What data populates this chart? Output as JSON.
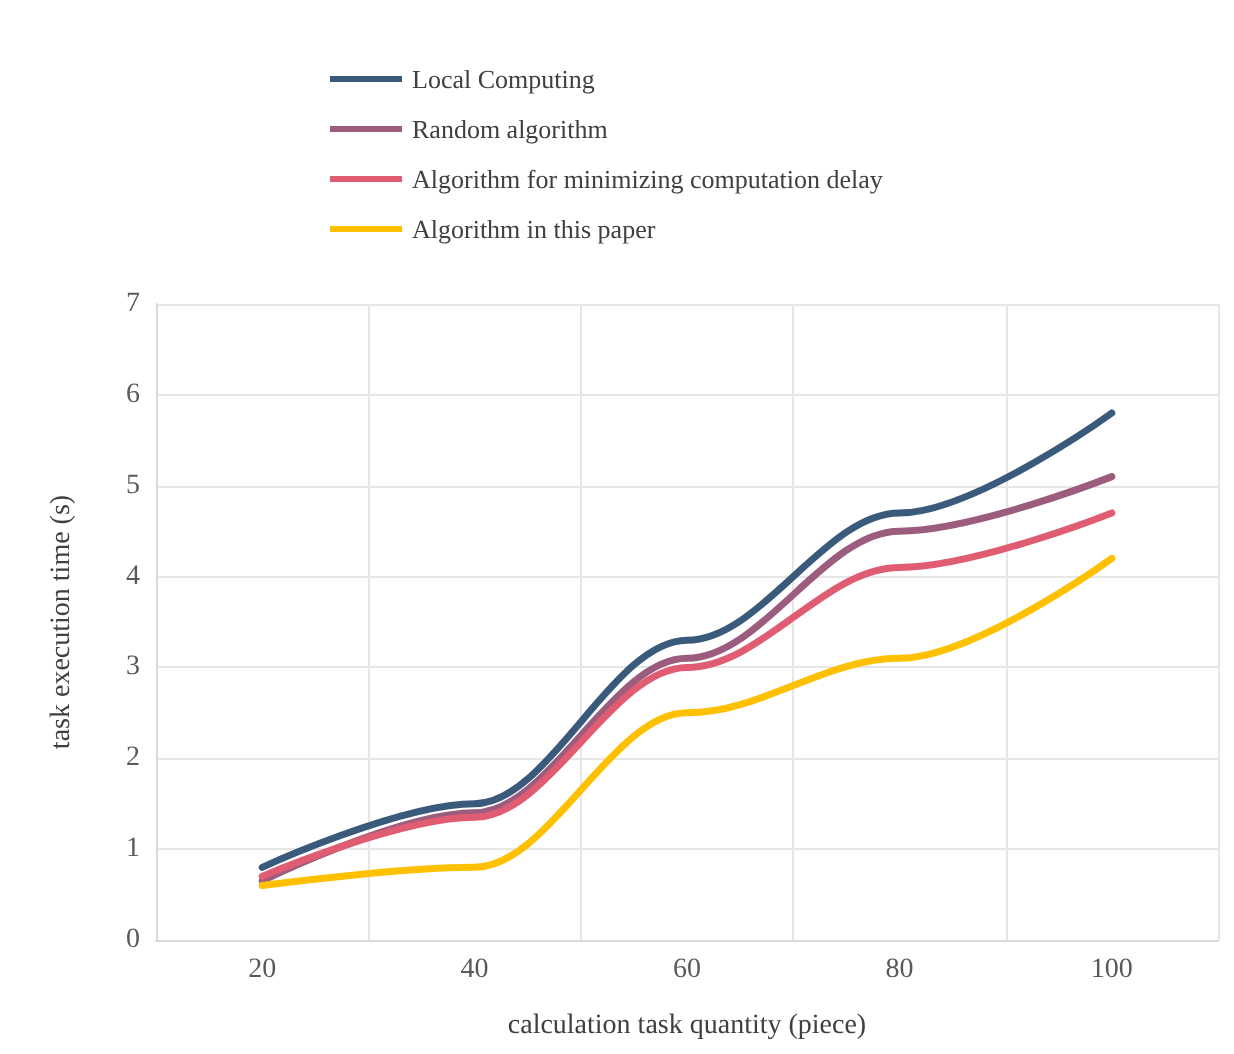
{
  "chart_data": {
    "type": "line",
    "xlabel": "calculation task quantity (piece)",
    "ylabel": "task execution time (s)",
    "categories": [
      "20",
      "40",
      "60",
      "80",
      "100"
    ],
    "series": [
      {
        "name": "Local Computing",
        "color": "#3a5a7c",
        "values": [
          0.8,
          1.5,
          3.3,
          4.7,
          5.8
        ]
      },
      {
        "name": "Random algorithm",
        "color": "#9b5c7d",
        "values": [
          0.65,
          1.4,
          3.1,
          4.5,
          5.1
        ]
      },
      {
        "name": "Algorithm for minimizing computation delay",
        "color": "#e05c72",
        "values": [
          0.7,
          1.35,
          3.0,
          4.1,
          4.7
        ]
      },
      {
        "name": "Algorithm in this paper",
        "color": "#ffc000",
        "values": [
          0.6,
          0.8,
          2.5,
          3.1,
          4.2
        ]
      }
    ],
    "ylim": [
      0,
      7
    ],
    "yticks": [
      0,
      1,
      2,
      3,
      4,
      5,
      6,
      7
    ],
    "grid": true,
    "legend": "top left",
    "marker": "none",
    "line_style": "solid"
  }
}
